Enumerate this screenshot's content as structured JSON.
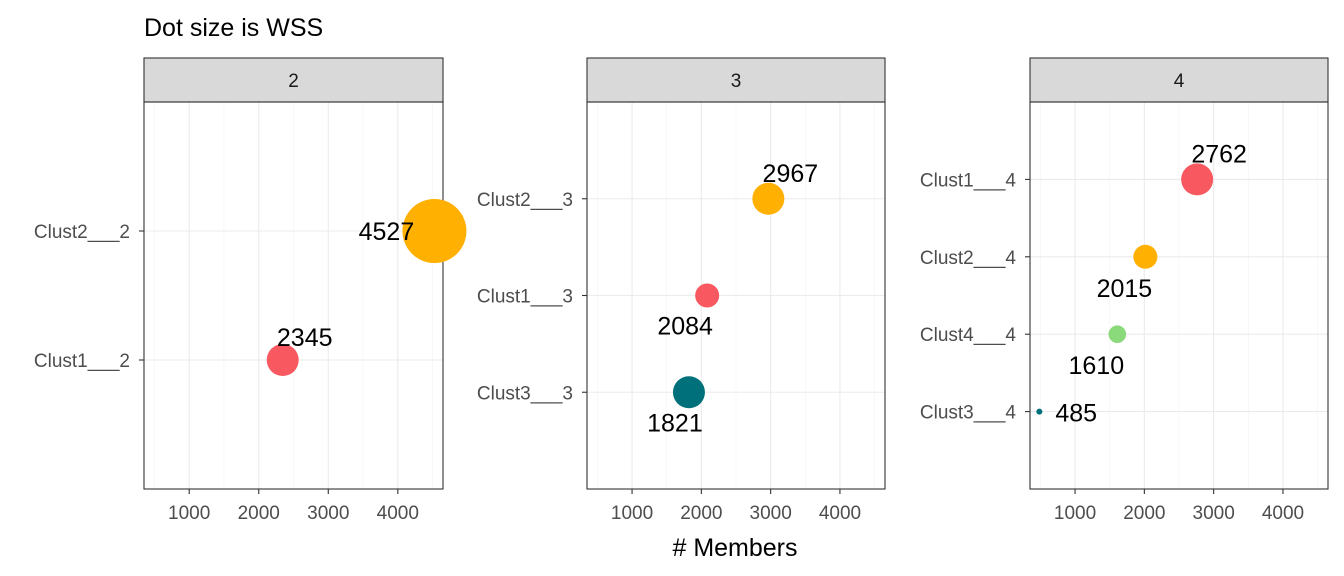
{
  "chart_data": {
    "type": "scatter",
    "title": "Dot size is WSS",
    "xlabel": "# Members",
    "ylabel": "",
    "xlim": [
      350,
      4650
    ],
    "x_ticks": [
      1000,
      2000,
      3000,
      4000
    ],
    "grid": true,
    "panels": [
      {
        "facet": "2",
        "categories": [
          "Clust1___2",
          "Clust2___2"
        ],
        "points": [
          {
            "category": "Clust1___2",
            "x": 2345,
            "label": "2345",
            "color": "#F8585F",
            "wss_rank": 2
          },
          {
            "category": "Clust2___2",
            "x": 4527,
            "label": "4527",
            "color": "#FFB000",
            "wss_rank": 4
          }
        ]
      },
      {
        "facet": "3",
        "categories": [
          "Clust3___3",
          "Clust1___3",
          "Clust2___3"
        ],
        "points": [
          {
            "category": "Clust3___3",
            "x": 1821,
            "label": "1821",
            "color": "#00717A",
            "wss_rank": 2
          },
          {
            "category": "Clust1___3",
            "x": 2084,
            "label": "2084",
            "color": "#F8585F",
            "wss_rank": 1.5
          },
          {
            "category": "Clust2___3",
            "x": 2967,
            "label": "2967",
            "color": "#FFB000",
            "wss_rank": 2
          }
        ]
      },
      {
        "facet": "4",
        "categories": [
          "Clust3___4",
          "Clust4___4",
          "Clust2___4",
          "Clust1___4"
        ],
        "points": [
          {
            "category": "Clust3___4",
            "x": 485,
            "label": "485",
            "color": "#00717A",
            "wss_rank": 0.3
          },
          {
            "category": "Clust4___4",
            "x": 1610,
            "label": "1610",
            "color": "#8AD97A",
            "wss_rank": 1.1
          },
          {
            "category": "Clust2___4",
            "x": 2015,
            "label": "2015",
            "color": "#FFB000",
            "wss_rank": 1.5
          },
          {
            "category": "Clust1___4",
            "x": 2762,
            "label": "2762",
            "color": "#F8585F",
            "wss_rank": 2
          }
        ]
      }
    ]
  }
}
